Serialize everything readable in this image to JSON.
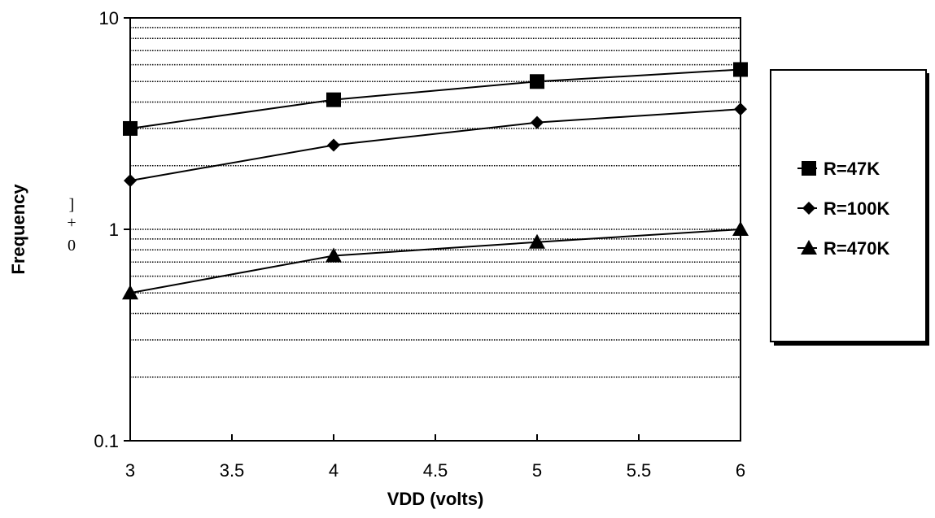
{
  "chart_data": {
    "type": "line",
    "title": "",
    "xlabel": "VDD (volts)",
    "ylabel": "Frequency",
    "ylabel_fragment": [
      "]",
      "+",
      "0"
    ],
    "x_ticks": [
      "3",
      "3.5",
      "4",
      "4.5",
      "5",
      "5.5",
      "6"
    ],
    "y_ticks": [
      "10",
      "1",
      "0.1"
    ],
    "xlim": [
      3,
      6
    ],
    "ylim": [
      0.1,
      10
    ],
    "y_scale": "log",
    "grid": "horizontal minor, dotted",
    "legend_position": "right",
    "x": [
      3,
      4,
      5,
      6
    ],
    "series": [
      {
        "name": "R=47K",
        "marker": "square",
        "values": [
          3.0,
          4.1,
          5.0,
          5.7
        ]
      },
      {
        "name": "R=100K",
        "marker": "diamond",
        "values": [
          1.7,
          2.5,
          3.2,
          3.7
        ]
      },
      {
        "name": "R=470K",
        "marker": "triangle",
        "values": [
          0.5,
          0.75,
          0.87,
          1.0
        ]
      }
    ]
  },
  "colors": {
    "line": "#000000",
    "background": "#ffffff",
    "grid": "#000000"
  }
}
